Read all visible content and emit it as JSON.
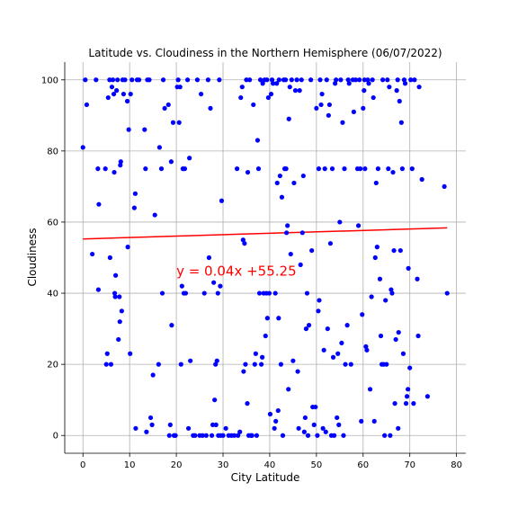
{
  "chart_data": {
    "type": "scatter",
    "title": "Latitude vs. Cloudiness in the Northern Hemisphere (06/07/2022)",
    "xlabel": "City Latitude",
    "ylabel": "Cloudiness",
    "xlim": [
      -3.9,
      82
    ],
    "ylim": [
      -5,
      105
    ],
    "xticks": [
      0,
      10,
      20,
      30,
      40,
      50,
      60,
      70,
      80
    ],
    "yticks": [
      0,
      20,
      40,
      60,
      80,
      100
    ],
    "grid": true,
    "colors": {
      "points": "#0000ff",
      "regression": "#ff0000"
    },
    "regression": {
      "slope": 0.04,
      "intercept": 55.25,
      "x_range": [
        0,
        78
      ],
      "label": "y = 0.04x +55.25",
      "label_at": [
        20,
        45
      ]
    },
    "points": [
      [
        0,
        81
      ],
      [
        0.5,
        100
      ],
      [
        0.8,
        93
      ],
      [
        2,
        51
      ],
      [
        2.8,
        100
      ],
      [
        3.2,
        75
      ],
      [
        3.4,
        65
      ],
      [
        3.3,
        41
      ],
      [
        4.8,
        75
      ],
      [
        5,
        20
      ],
      [
        5.2,
        23
      ],
      [
        5.4,
        95
      ],
      [
        5.7,
        100
      ],
      [
        5.8,
        50
      ],
      [
        6,
        20
      ],
      [
        6.2,
        98
      ],
      [
        6.4,
        100
      ],
      [
        6.6,
        96
      ],
      [
        6.7,
        74
      ],
      [
        6.8,
        40
      ],
      [
        6.9,
        39
      ],
      [
        7,
        45
      ],
      [
        7.2,
        97
      ],
      [
        7.4,
        100
      ],
      [
        7.6,
        27
      ],
      [
        7.8,
        39
      ],
      [
        7.9,
        32
      ],
      [
        8,
        76
      ],
      [
        8.1,
        77
      ],
      [
        8.3,
        35
      ],
      [
        8.5,
        100
      ],
      [
        8.7,
        96
      ],
      [
        9,
        100
      ],
      [
        9.5,
        94
      ],
      [
        9.6,
        53
      ],
      [
        9.8,
        86
      ],
      [
        10.1,
        23
      ],
      [
        10.2,
        96
      ],
      [
        10.5,
        100
      ],
      [
        11,
        64
      ],
      [
        11.2,
        68
      ],
      [
        11.3,
        2
      ],
      [
        11.6,
        100
      ],
      [
        12,
        100
      ],
      [
        13.2,
        86
      ],
      [
        13.4,
        75
      ],
      [
        13.6,
        1
      ],
      [
        13.8,
        100
      ],
      [
        14.2,
        100
      ],
      [
        14.5,
        5
      ],
      [
        14.8,
        3
      ],
      [
        15,
        17
      ],
      [
        15.4,
        62
      ],
      [
        16.2,
        20
      ],
      [
        16.4,
        81
      ],
      [
        16.8,
        75
      ],
      [
        17,
        40
      ],
      [
        17.2,
        100
      ],
      [
        17.5,
        92
      ],
      [
        18.3,
        93
      ],
      [
        18.5,
        0
      ],
      [
        18.7,
        3
      ],
      [
        18.9,
        77
      ],
      [
        19,
        31
      ],
      [
        19.3,
        88
      ],
      [
        19.5,
        0
      ],
      [
        19.8,
        0
      ],
      [
        20.2,
        98
      ],
      [
        20.4,
        100
      ],
      [
        20.6,
        88
      ],
      [
        20.8,
        98
      ],
      [
        21,
        20
      ],
      [
        21.2,
        42
      ],
      [
        21.4,
        75
      ],
      [
        21.6,
        40
      ],
      [
        21.8,
        75
      ],
      [
        22,
        40
      ],
      [
        22.4,
        100
      ],
      [
        22.6,
        2
      ],
      [
        22.8,
        78
      ],
      [
        23,
        21
      ],
      [
        23.6,
        0
      ],
      [
        24,
        0
      ],
      [
        24.5,
        100
      ],
      [
        25,
        0
      ],
      [
        25.3,
        96
      ],
      [
        25.6,
        0
      ],
      [
        26,
        40
      ],
      [
        26.4,
        0
      ],
      [
        26.8,
        100
      ],
      [
        27,
        50
      ],
      [
        27.3,
        92
      ],
      [
        27.6,
        0
      ],
      [
        27.8,
        3
      ],
      [
        28,
        43
      ],
      [
        28.2,
        10
      ],
      [
        28.4,
        20
      ],
      [
        28.5,
        3
      ],
      [
        28.7,
        21
      ],
      [
        28.9,
        40
      ],
      [
        29,
        0
      ],
      [
        29.2,
        100
      ],
      [
        29.4,
        42
      ],
      [
        29.5,
        0
      ],
      [
        29.7,
        66
      ],
      [
        30,
        0
      ],
      [
        30.6,
        2
      ],
      [
        31.2,
        0
      ],
      [
        31.8,
        0
      ],
      [
        32.4,
        0
      ],
      [
        33,
        75
      ],
      [
        33.2,
        0
      ],
      [
        33.6,
        1
      ],
      [
        33.8,
        95
      ],
      [
        34.1,
        98
      ],
      [
        34.3,
        55
      ],
      [
        34.4,
        18
      ],
      [
        34.6,
        54
      ],
      [
        34.8,
        20
      ],
      [
        35,
        100
      ],
      [
        35.2,
        9
      ],
      [
        35.3,
        74
      ],
      [
        35.5,
        0
      ],
      [
        35.7,
        100
      ],
      [
        36,
        0
      ],
      [
        36.2,
        0
      ],
      [
        36.5,
        93
      ],
      [
        36.8,
        20
      ],
      [
        37,
        23
      ],
      [
        37.2,
        0
      ],
      [
        37.4,
        83
      ],
      [
        37.6,
        75
      ],
      [
        37.8,
        40
      ],
      [
        38,
        100
      ],
      [
        38.2,
        20
      ],
      [
        38.4,
        22
      ],
      [
        38.5,
        99
      ],
      [
        38.7,
        40
      ],
      [
        38.9,
        100
      ],
      [
        39.1,
        28
      ],
      [
        39.3,
        40
      ],
      [
        39.4,
        100
      ],
      [
        39.5,
        33
      ],
      [
        39.7,
        95
      ],
      [
        39.9,
        40
      ],
      [
        40.1,
        6
      ],
      [
        40.3,
        96
      ],
      [
        40.5,
        100
      ],
      [
        40.7,
        99
      ],
      [
        41,
        2
      ],
      [
        41.2,
        40
      ],
      [
        41.3,
        4
      ],
      [
        41.5,
        99
      ],
      [
        41.6,
        71
      ],
      [
        41.8,
        7
      ],
      [
        41.9,
        33
      ],
      [
        42,
        100
      ],
      [
        42.2,
        73
      ],
      [
        42.4,
        20
      ],
      [
        42.6,
        67
      ],
      [
        42.8,
        0
      ],
      [
        43,
        100
      ],
      [
        43.2,
        75
      ],
      [
        43.4,
        100
      ],
      [
        43.5,
        75
      ],
      [
        43.6,
        57
      ],
      [
        43.8,
        59
      ],
      [
        44,
        13
      ],
      [
        44.1,
        89
      ],
      [
        44.3,
        98
      ],
      [
        44.5,
        51
      ],
      [
        44.7,
        100
      ],
      [
        45,
        21
      ],
      [
        45.2,
        71
      ],
      [
        45.5,
        97
      ],
      [
        45.8,
        100
      ],
      [
        46,
        18
      ],
      [
        46.2,
        2
      ],
      [
        46.4,
        97
      ],
      [
        46.6,
        48
      ],
      [
        46.8,
        100
      ],
      [
        47,
        57
      ],
      [
        47.2,
        73
      ],
      [
        47.4,
        1
      ],
      [
        47.6,
        5
      ],
      [
        47.8,
        30
      ],
      [
        48,
        40
      ],
      [
        48.2,
        0
      ],
      [
        48.4,
        31
      ],
      [
        48.8,
        100
      ],
      [
        49,
        52
      ],
      [
        49.2,
        8
      ],
      [
        49.5,
        3
      ],
      [
        49.8,
        8
      ],
      [
        50,
        92
      ],
      [
        50.2,
        0
      ],
      [
        50.4,
        35
      ],
      [
        50.5,
        75
      ],
      [
        50.6,
        38
      ],
      [
        50.8,
        100
      ],
      [
        51,
        93
      ],
      [
        51.2,
        96
      ],
      [
        51.4,
        2
      ],
      [
        51.6,
        24
      ],
      [
        51.8,
        75
      ],
      [
        52,
        1
      ],
      [
        52.2,
        100
      ],
      [
        52.4,
        30
      ],
      [
        52.6,
        90
      ],
      [
        52.8,
        93
      ],
      [
        53,
        54
      ],
      [
        53.2,
        0
      ],
      [
        53.4,
        75
      ],
      [
        53.6,
        22
      ],
      [
        53.8,
        0
      ],
      [
        54,
        99
      ],
      [
        54.2,
        100
      ],
      [
        54.4,
        5
      ],
      [
        54.6,
        23
      ],
      [
        54.8,
        3
      ],
      [
        55,
        60
      ],
      [
        55.2,
        100
      ],
      [
        55.4,
        26
      ],
      [
        55.6,
        88
      ],
      [
        55.8,
        0
      ],
      [
        56,
        75
      ],
      [
        56.2,
        20
      ],
      [
        56.6,
        31
      ],
      [
        56.8,
        100
      ],
      [
        57,
        99
      ],
      [
        57.4,
        20
      ],
      [
        57.8,
        100
      ],
      [
        58,
        91
      ],
      [
        58.4,
        100
      ],
      [
        58.8,
        75
      ],
      [
        59,
        59
      ],
      [
        59.2,
        100
      ],
      [
        59.4,
        75
      ],
      [
        59.6,
        4
      ],
      [
        59.8,
        34
      ],
      [
        60,
        92
      ],
      [
        60.2,
        97
      ],
      [
        60.3,
        100
      ],
      [
        60.4,
        75
      ],
      [
        60.6,
        25
      ],
      [
        60.8,
        24
      ],
      [
        61,
        100
      ],
      [
        61.2,
        99
      ],
      [
        61.5,
        13
      ],
      [
        61.8,
        39
      ],
      [
        62,
        100
      ],
      [
        62.2,
        95
      ],
      [
        62.4,
        4
      ],
      [
        62.6,
        50
      ],
      [
        62.8,
        71
      ],
      [
        63,
        53
      ],
      [
        63.2,
        75
      ],
      [
        63.6,
        44
      ],
      [
        63.8,
        28
      ],
      [
        64,
        20
      ],
      [
        64.2,
        100
      ],
      [
        64.4,
        20
      ],
      [
        64.6,
        0
      ],
      [
        64.8,
        38
      ],
      [
        65,
        20
      ],
      [
        65.2,
        100
      ],
      [
        65.4,
        75
      ],
      [
        65.6,
        98
      ],
      [
        65.8,
        0
      ],
      [
        66,
        41
      ],
      [
        66.2,
        40
      ],
      [
        66.4,
        74
      ],
      [
        66.6,
        52
      ],
      [
        66.8,
        9
      ],
      [
        67,
        27
      ],
      [
        67.2,
        97
      ],
      [
        67.4,
        100
      ],
      [
        67.5,
        2
      ],
      [
        67.6,
        29
      ],
      [
        67.8,
        94
      ],
      [
        68,
        52
      ],
      [
        68.2,
        88
      ],
      [
        68.4,
        75
      ],
      [
        68.6,
        23
      ],
      [
        68.8,
        100
      ],
      [
        69,
        99
      ],
      [
        69.2,
        9
      ],
      [
        69.4,
        11
      ],
      [
        69.6,
        13
      ],
      [
        69.7,
        47
      ],
      [
        70,
        19
      ],
      [
        70.2,
        100
      ],
      [
        70.5,
        75
      ],
      [
        70.8,
        9
      ],
      [
        71,
        100
      ],
      [
        71.6,
        44
      ],
      [
        71.8,
        28
      ],
      [
        72,
        98
      ],
      [
        72.6,
        72
      ],
      [
        73.8,
        11
      ],
      [
        77.4,
        70
      ],
      [
        78,
        40
      ]
    ]
  }
}
